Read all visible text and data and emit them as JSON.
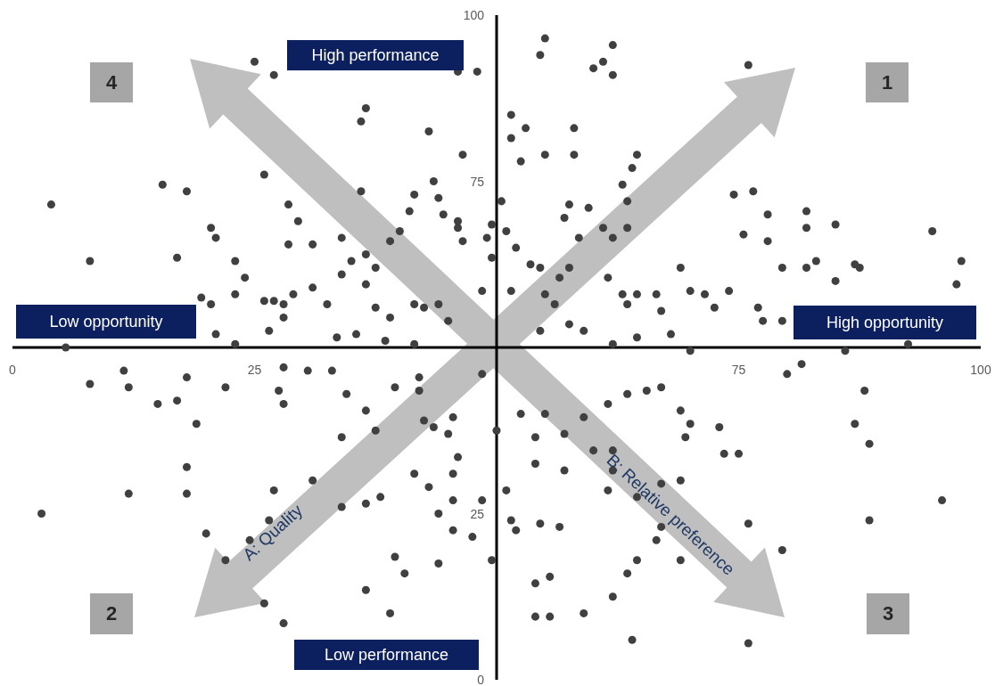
{
  "chart_data": {
    "type": "scatter",
    "marker": "circle",
    "color": "#404040",
    "x": [
      25,
      27,
      46,
      48,
      55,
      54.5,
      62,
      61,
      60,
      62,
      76,
      36.5,
      36,
      43,
      51.5,
      53,
      51.5,
      58,
      55,
      52.5,
      58,
      64.5,
      64,
      46.5,
      26,
      4,
      15.5,
      18,
      20.5,
      28.5,
      29.5,
      36,
      41.5,
      43.5,
      44,
      41,
      44.5,
      46,
      46,
      46.5,
      49.5,
      50.5,
      51,
      49,
      52,
      49.5,
      57.5,
      57,
      59.5,
      61,
      58.5,
      62,
      63.5,
      63,
      63.5,
      74.5,
      76.5,
      78,
      75.5,
      82,
      82,
      85,
      78,
      95,
      98,
      97.5,
      83,
      87,
      79.5,
      82,
      85,
      8,
      17,
      21,
      23,
      24,
      28.5,
      31,
      34,
      36.5,
      35,
      37.5,
      40,
      39,
      19.5,
      20.5,
      21,
      23,
      26,
      27,
      28,
      29,
      31,
      32.5,
      34,
      36.5,
      37.5,
      39,
      41.5,
      42.5,
      44,
      45,
      48.5,
      51.5,
      53.5,
      54.5,
      56.5,
      57.5,
      61.5,
      63,
      63.5,
      64.5,
      66.5,
      67,
      69,
      70,
      71.5,
      72.5,
      74,
      77,
      77.5,
      79.5,
      87.5,
      92.5,
      86,
      5.5,
      23,
      26.5,
      28,
      33.5,
      35.5,
      38.5,
      41.5,
      54.5,
      57.5,
      59,
      62,
      64.5,
      68,
      70,
      56,
      55,
      8,
      12,
      11.5,
      15,
      17,
      18,
      19,
      22,
      28,
      27.5,
      28,
      30.5,
      33,
      34.5,
      34,
      36.5,
      37.5,
      39.5,
      42,
      42,
      42.5,
      43.5,
      45,
      45.5,
      46,
      48.5,
      50,
      52.5,
      54,
      55,
      57,
      57,
      59,
      60,
      61.5,
      62,
      63.5,
      65.5,
      67,
      69,
      69.5,
      70,
      73,
      73.5,
      75,
      81.5,
      80,
      88,
      87,
      88.5,
      12,
      18,
      18,
      20,
      24.5,
      27,
      26.5,
      31,
      34,
      36.5,
      38,
      41.5,
      43,
      45.5,
      45.5,
      48.5,
      51,
      51.5,
      52,
      54.5,
      56.5,
      54,
      62,
      61.5,
      64.5,
      67,
      69,
      67,
      66.5,
      76,
      88.5,
      96,
      3,
      44,
      45.5,
      47.5,
      22,
      39.5,
      40.5,
      36.5,
      39,
      44,
      49.5,
      54,
      55.5,
      54,
      55.5,
      59,
      62,
      63.5,
      64.5,
      69,
      64,
      76,
      79.5,
      26,
      28
    ],
    "values": [
      93,
      91,
      91.5,
      91.5,
      96.5,
      94,
      95.5,
      93,
      92,
      91,
      92.5,
      86,
      84,
      82.5,
      85,
      83,
      81.5,
      83,
      79,
      78,
      79,
      79,
      77,
      79,
      76,
      71.5,
      74.5,
      73.5,
      68,
      71.5,
      69,
      73.5,
      73,
      75,
      72.5,
      70.5,
      70,
      69,
      68,
      66,
      68.5,
      72,
      67.5,
      66.5,
      65,
      63.5,
      71.5,
      69.5,
      71,
      68,
      66.5,
      66.5,
      68,
      74.5,
      72,
      73,
      73.5,
      70,
      67,
      70.5,
      68,
      68.5,
      66,
      67.5,
      63,
      59.5,
      63,
      62.5,
      62,
      62,
      60,
      63,
      63.5,
      66.5,
      63,
      60.5,
      65.5,
      65.5,
      66.5,
      64,
      63,
      62,
      67.5,
      66,
      57.5,
      56.5,
      52,
      58,
      57,
      57,
      56.5,
      58,
      59,
      56.5,
      61,
      59.5,
      56,
      54.5,
      56.5,
      56,
      56.5,
      54,
      58.5,
      58.5,
      62.5,
      62,
      60.5,
      62,
      60.5,
      58,
      56.5,
      58,
      58,
      55.5,
      62,
      58.5,
      58,
      56,
      58.5,
      56,
      54,
      54,
      62,
      50.5,
      49.5,
      50,
      50.5,
      52.5,
      54.5,
      51.5,
      52,
      51,
      50.5,
      52.5,
      53.5,
      52.5,
      50.5,
      51.5,
      52,
      49.5,
      56.5,
      58,
      44.5,
      44,
      46.5,
      41.5,
      42,
      45.5,
      38.5,
      44,
      47,
      43.5,
      41.5,
      46.5,
      46.5,
      43,
      36.5,
      40.5,
      37.5,
      44,
      43.5,
      45.5,
      39,
      38,
      37,
      39.5,
      33.5,
      46,
      37.5,
      40,
      36.5,
      40,
      37,
      31.5,
      39.5,
      34.5,
      41.5,
      34.5,
      43,
      43.5,
      44,
      40.5,
      36.5,
      38.5,
      38,
      34,
      34,
      47.5,
      46,
      43.5,
      38.5,
      35.5,
      28,
      32,
      28,
      22,
      21,
      28.5,
      24,
      30,
      26,
      26.5,
      27.5,
      31,
      29,
      31,
      27,
      27,
      28.5,
      24,
      22.5,
      23.5,
      23,
      32.5,
      31.5,
      28.5,
      27.5,
      29.5,
      30,
      23,
      21,
      23.5,
      24,
      27,
      25,
      25,
      22.5,
      21.5,
      18,
      18.5,
      16,
      13.5,
      10,
      17.5,
      18,
      14.5,
      15.5,
      9.5,
      9.5,
      10,
      12.5,
      16,
      18,
      18,
      6,
      5.5,
      19.5,
      11.5,
      8.5
    ],
    "xlim": [
      0,
      100
    ],
    "ylim": [
      0,
      100
    ],
    "xticks": [
      0,
      25,
      75,
      100
    ],
    "yticks": [
      0,
      25,
      75,
      100
    ],
    "annotations": [
      "High performance",
      "Low performance",
      "Low opportunity",
      "High opportunity",
      "1",
      "2",
      "3",
      "4",
      "A: Quality",
      "B: Relative preference"
    ]
  }
}
